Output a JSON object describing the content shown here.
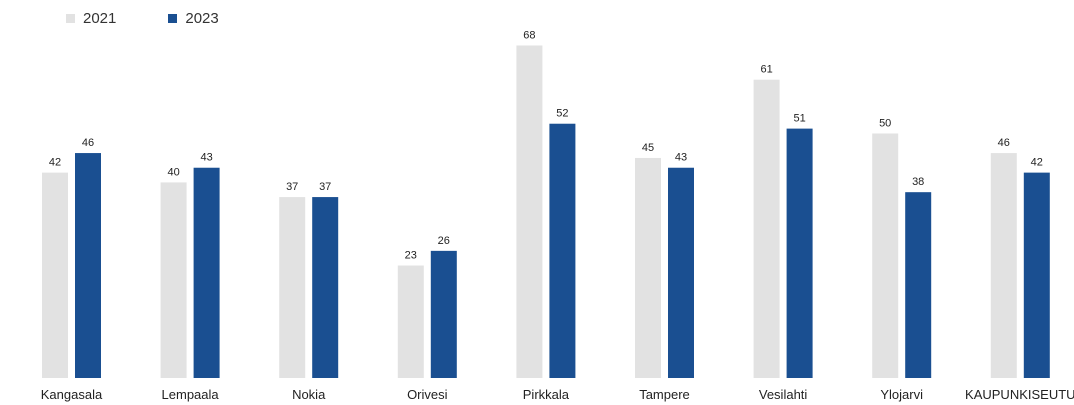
{
  "chart_data": {
    "type": "bar",
    "title": "",
    "xlabel": "",
    "ylabel": "",
    "categories": [
      "Kangasala",
      "Lempaala",
      "Nokia",
      "Orivesi",
      "Pirkkala",
      "Tampere",
      "Vesilahti",
      "Ylojarvi",
      "KAUPUNKISEUTU"
    ],
    "series": [
      {
        "name": "2021",
        "color": "#e2e2e2",
        "values": [
          42,
          40,
          37,
          23,
          68,
          45,
          61,
          50,
          46
        ]
      },
      {
        "name": "2023",
        "color": "#1a4f91",
        "values": [
          46,
          43,
          37,
          26,
          52,
          43,
          51,
          38,
          42
        ]
      }
    ],
    "ylim": [
      0,
      70
    ],
    "grid": false,
    "legend": "top-left",
    "value_labels": true
  }
}
